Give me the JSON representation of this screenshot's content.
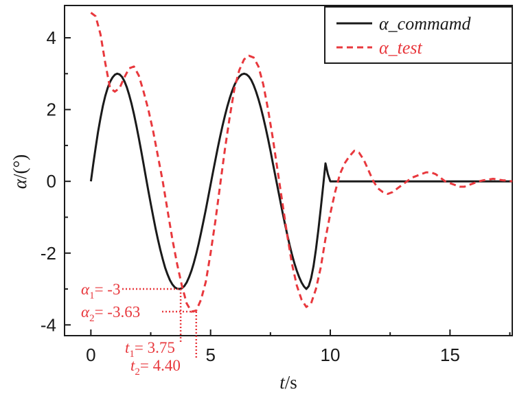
{
  "chart_data": {
    "type": "line",
    "xlabel_italic": "t",
    "xlabel_unit": "/s",
    "ylabel_italic": "α",
    "ylabel_unit": "/(°)",
    "xlim": [
      -1.1,
      17.6
    ],
    "ylim": [
      -4.3,
      4.9
    ],
    "xticks": [
      0,
      5,
      10,
      15
    ],
    "yticks": [
      -4,
      -2,
      0,
      2,
      4
    ],
    "grid": false,
    "legend_position": "top-right",
    "series": [
      {
        "name": "α_commamd",
        "color": "#1a1a1a",
        "style": "solid",
        "x": [
          0,
          0.1,
          0.2,
          0.3,
          0.4,
          0.5,
          0.6,
          0.7,
          0.8,
          0.9,
          1.0,
          1.1,
          1.2,
          1.3,
          1.4,
          1.5,
          1.6,
          1.7,
          1.8,
          1.9,
          2.0,
          2.1,
          2.2,
          2.3,
          2.4,
          2.5,
          2.6,
          2.7,
          2.8,
          2.9,
          3.0,
          3.1,
          3.2,
          3.3,
          3.4,
          3.5,
          3.6,
          3.7,
          3.8,
          3.9,
          4.0,
          4.1,
          4.2,
          4.3,
          4.4,
          4.5,
          4.6,
          4.7,
          4.8,
          4.9,
          5.0,
          5.1,
          5.2,
          5.3,
          5.4,
          5.5,
          5.6,
          5.7,
          5.8,
          5.9,
          6.0,
          6.1,
          6.2,
          6.3,
          6.4,
          6.5,
          6.6,
          6.7,
          6.8,
          6.9,
          7.0,
          7.1,
          7.2,
          7.3,
          7.4,
          7.5,
          7.6,
          7.7,
          7.8,
          7.9,
          8.0,
          8.1,
          8.2,
          8.3,
          8.4,
          8.5,
          8.6,
          8.7,
          8.8,
          8.9,
          9.0,
          9.1,
          9.2,
          9.3,
          9.4,
          9.5,
          9.6,
          9.7,
          9.8,
          9.9,
          10.0,
          10.5,
          11,
          12,
          13,
          14,
          15,
          16,
          17,
          17.6
        ],
        "y": [
          0,
          0.48,
          0.94,
          1.38,
          1.76,
          2.1,
          2.38,
          2.6,
          2.77,
          2.89,
          2.97,
          3.0,
          2.98,
          2.91,
          2.79,
          2.62,
          2.41,
          2.16,
          1.87,
          1.55,
          1.21,
          0.85,
          0.48,
          0.11,
          -0.26,
          -0.62,
          -0.97,
          -1.31,
          -1.62,
          -1.91,
          -2.17,
          -2.4,
          -2.59,
          -2.75,
          -2.87,
          -2.95,
          -2.99,
          -3.0,
          -2.98,
          -2.92,
          -2.82,
          -2.67,
          -2.49,
          -2.27,
          -2.02,
          -1.74,
          -1.44,
          -1.12,
          -0.79,
          -0.44,
          -0.09,
          0.26,
          0.6,
          0.93,
          1.25,
          1.55,
          1.83,
          2.09,
          2.32,
          2.52,
          2.69,
          2.82,
          2.92,
          2.98,
          3.0,
          2.98,
          2.92,
          2.82,
          2.68,
          2.5,
          2.29,
          2.05,
          1.78,
          1.49,
          1.18,
          0.85,
          0.51,
          0.17,
          -0.17,
          -0.51,
          -0.85,
          -1.17,
          -1.48,
          -1.77,
          -2.04,
          -2.28,
          -2.49,
          -2.67,
          -2.82,
          -2.93,
          -3.0,
          -2.92,
          -2.7,
          -2.36,
          -1.9,
          -1.36,
          -0.76,
          -0.13,
          0.5,
          0.2,
          0,
          0,
          0,
          0,
          0,
          0,
          0,
          0,
          0,
          0
        ]
      },
      {
        "name": "α_test",
        "color": "#e8383d",
        "style": "dashed",
        "x": [
          0,
          0.2,
          0.4,
          0.6,
          0.8,
          1.0,
          1.2,
          1.4,
          1.6,
          1.8,
          2.0,
          2.2,
          2.4,
          2.6,
          2.8,
          3.0,
          3.2,
          3.4,
          3.6,
          3.8,
          4.0,
          4.2,
          4.4,
          4.6,
          4.8,
          5.0,
          5.2,
          5.4,
          5.6,
          5.8,
          6.0,
          6.2,
          6.4,
          6.6,
          6.8,
          7.0,
          7.2,
          7.4,
          7.6,
          7.8,
          8.0,
          8.2,
          8.4,
          8.6,
          8.8,
          9.0,
          9.2,
          9.4,
          9.6,
          9.8,
          10.0,
          10.2,
          10.4,
          10.6,
          10.8,
          11.0,
          11.2,
          11.4,
          11.6,
          11.8,
          12.0,
          12.2,
          12.4,
          12.6,
          12.8,
          13.0,
          13.2,
          13.4,
          13.6,
          13.8,
          14.0,
          14.2,
          14.4,
          14.6,
          14.8,
          15.0,
          15.2,
          15.4,
          15.6,
          15.8,
          16.0,
          16.2,
          16.4,
          16.6,
          16.8,
          17.0,
          17.2,
          17.4,
          17.6
        ],
        "y": [
          4.7,
          4.6,
          4.1,
          3.3,
          2.6,
          2.5,
          2.6,
          2.9,
          3.15,
          3.2,
          2.95,
          2.5,
          2.0,
          1.4,
          0.7,
          0.0,
          -0.8,
          -1.6,
          -2.3,
          -2.9,
          -3.4,
          -3.63,
          -3.6,
          -3.3,
          -2.8,
          -2.0,
          -1.1,
          -0.1,
          0.9,
          1.8,
          2.6,
          3.1,
          3.4,
          3.5,
          3.45,
          3.2,
          2.7,
          2.0,
          1.2,
          0.3,
          -0.6,
          -1.5,
          -2.3,
          -2.9,
          -3.3,
          -3.5,
          -3.4,
          -3.0,
          -2.4,
          -1.6,
          -0.9,
          -0.3,
          0.2,
          0.5,
          0.7,
          0.85,
          0.8,
          0.6,
          0.3,
          0.0,
          -0.2,
          -0.3,
          -0.35,
          -0.3,
          -0.2,
          -0.1,
          0.0,
          0.1,
          0.15,
          0.2,
          0.25,
          0.25,
          0.2,
          0.1,
          0.0,
          -0.05,
          -0.1,
          -0.15,
          -0.15,
          -0.1,
          -0.05,
          0.0,
          0.03,
          0.05,
          0.07,
          0.05,
          0.03,
          0.02,
          0.0
        ]
      }
    ],
    "annotations": [
      {
        "sym": "α",
        "sub": "1",
        "text": "= -3",
        "x": 3.75,
        "y": -3
      },
      {
        "sym": "α",
        "sub": "2",
        "text": "= -3.63",
        "x": 4.4,
        "y": -3.63
      },
      {
        "sym": "t",
        "sub": "1",
        "text": "= 3.75",
        "x": 3.75
      },
      {
        "sym": "t",
        "sub": "2",
        "text": "= 4.40",
        "x": 4.4
      }
    ]
  }
}
